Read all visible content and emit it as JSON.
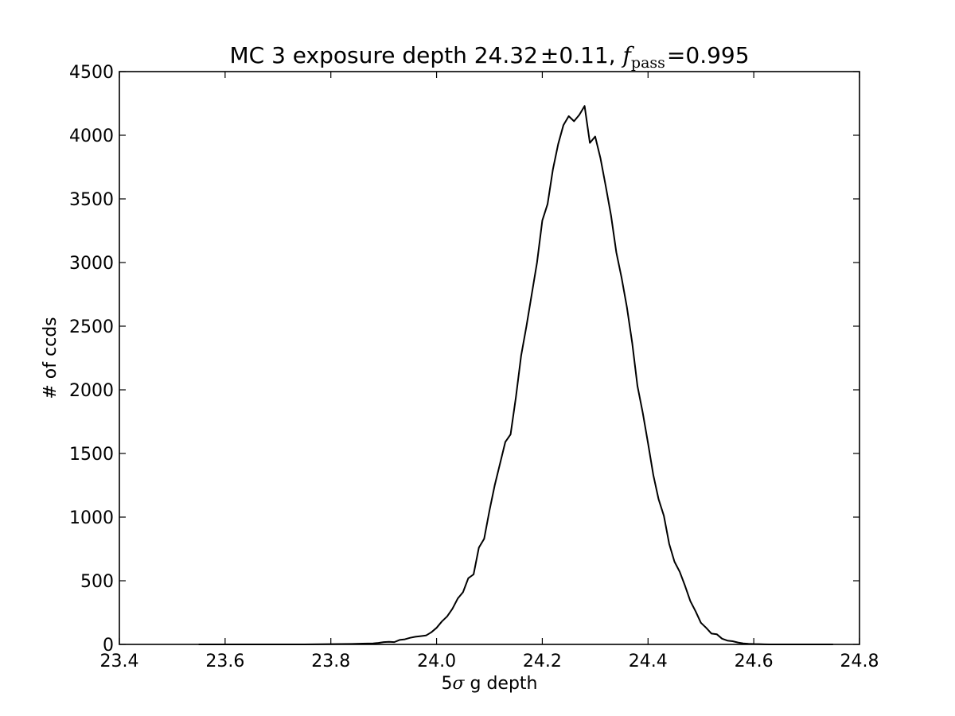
{
  "chart_data": {
    "type": "line",
    "title": {
      "prefix": "MC 3 exposure depth 24.32",
      "pm": "±",
      "err": "0.11, ",
      "f": "f",
      "sub": "pass",
      "eq": "=",
      "value": "0.995"
    },
    "xlabel": {
      "prefix": "5",
      "sigma": "σ",
      "suffix": " g depth"
    },
    "ylabel": "# of ccds",
    "xlim": [
      23.4,
      24.8
    ],
    "ylim": [
      0,
      4500
    ],
    "xticks": [
      23.4,
      23.6,
      23.8,
      24.0,
      24.2,
      24.4,
      24.6,
      24.8
    ],
    "xtick_labels": [
      "23.4",
      "23.6",
      "23.8",
      "24.0",
      "24.2",
      "24.4",
      "24.6",
      "24.8"
    ],
    "yticks": [
      0,
      500,
      1000,
      1500,
      2000,
      2500,
      3000,
      3500,
      4000,
      4500
    ],
    "ytick_labels": [
      "0",
      "500",
      "1000",
      "1500",
      "2000",
      "2500",
      "3000",
      "3500",
      "4000",
      "4500"
    ],
    "grid": false,
    "legend": "none",
    "series": [
      {
        "color": "#000000",
        "x": [
          23.55,
          23.6,
          23.65,
          23.7,
          23.75,
          23.8,
          23.82,
          23.84,
          23.86,
          23.88,
          23.89,
          23.9,
          23.91,
          23.92,
          23.93,
          23.94,
          23.95,
          23.96,
          23.97,
          23.98,
          23.99,
          24.0,
          24.01,
          24.02,
          24.03,
          24.04,
          24.05,
          24.06,
          24.07,
          24.08,
          24.09,
          24.1,
          24.11,
          24.12,
          24.13,
          24.14,
          24.15,
          24.16,
          24.17,
          24.18,
          24.19,
          24.2,
          24.21,
          24.22,
          24.23,
          24.24,
          24.25,
          24.26,
          24.27,
          24.28,
          24.29,
          24.3,
          24.31,
          24.32,
          24.33,
          24.34,
          24.35,
          24.36,
          24.37,
          24.38,
          24.39,
          24.4,
          24.41,
          24.42,
          24.43,
          24.44,
          24.45,
          24.46,
          24.47,
          24.48,
          24.49,
          24.5,
          24.51,
          24.52,
          24.53,
          24.54,
          24.55,
          24.56,
          24.57,
          24.58,
          24.59,
          24.6,
          24.61,
          24.62,
          24.63,
          24.64,
          24.65,
          24.66,
          24.67,
          24.68,
          24.69,
          24.7,
          24.72,
          24.74,
          24.75
        ],
        "y": [
          0,
          0,
          0,
          0,
          0,
          2,
          3,
          4,
          6,
          8,
          12,
          18,
          20,
          18,
          35,
          40,
          52,
          60,
          65,
          70,
          95,
          130,
          180,
          220,
          280,
          360,
          410,
          520,
          550,
          760,
          830,
          1050,
          1250,
          1420,
          1590,
          1650,
          1940,
          2270,
          2500,
          2750,
          3000,
          3330,
          3460,
          3730,
          3930,
          4080,
          4150,
          4110,
          4160,
          4230,
          3940,
          3990,
          3820,
          3600,
          3370,
          3080,
          2880,
          2650,
          2370,
          2030,
          1820,
          1580,
          1330,
          1140,
          1010,
          790,
          650,
          570,
          460,
          340,
          260,
          170,
          130,
          85,
          80,
          45,
          30,
          25,
          15,
          8,
          5,
          3,
          2,
          1,
          0,
          0,
          0,
          0,
          0,
          0,
          0,
          0,
          0,
          0,
          0
        ]
      }
    ]
  }
}
